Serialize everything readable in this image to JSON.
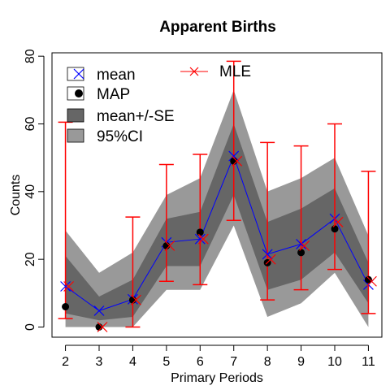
{
  "chart_data": {
    "type": "line",
    "title": "Apparent Births",
    "xlabel": "Primary Periods",
    "ylabel": "Counts",
    "x": [
      2,
      3,
      4,
      5,
      6,
      7,
      8,
      9,
      10,
      11
    ],
    "xlim": [
      1.6,
      11.4
    ],
    "ylim": [
      -3,
      81
    ],
    "y_ticks": [
      0,
      20,
      40,
      60,
      80
    ],
    "x_tick_labels": [
      "2",
      "3",
      "4",
      "5",
      "6",
      "7",
      "8",
      "9",
      "10",
      "11"
    ],
    "y_tick_labels": [
      "0",
      "20",
      "40",
      "60",
      "80"
    ],
    "series": [
      {
        "name": "mean",
        "values": [
          12,
          4.8,
          8.2,
          25,
          26,
          50.5,
          21.5,
          24.5,
          32,
          12.5
        ],
        "color": "#0000ff",
        "marker": "x"
      },
      {
        "name": "MAP",
        "values": [
          6,
          0,
          8,
          24,
          28,
          49,
          19,
          22,
          29,
          14
        ],
        "color": "#000000",
        "marker": "dot"
      },
      {
        "name": "MLE",
        "values": [
          12,
          0,
          8,
          24,
          26,
          49,
          20,
          24,
          31,
          13.5
        ],
        "color": "#ff0000",
        "marker": "x",
        "ci_lower": [
          2.5,
          0,
          0,
          13.5,
          12.5,
          31.5,
          8,
          11,
          17,
          4
        ],
        "ci_upper": [
          60.5,
          0,
          32.5,
          48,
          51,
          78.5,
          54.5,
          53.5,
          60,
          46
        ]
      }
    ],
    "bands": [
      {
        "name": "mean+/-SE",
        "lower": [
          4,
          2,
          3,
          18,
          18,
          39,
          11,
          14,
          22,
          7
        ],
        "upper": [
          21,
          9,
          14,
          32,
          34,
          60,
          31,
          35,
          41,
          19
        ],
        "color": "#666666"
      },
      {
        "name": "95%CI",
        "lower": [
          0,
          0,
          0,
          11,
          11,
          30,
          3,
          7,
          16,
          0
        ],
        "upper": [
          28.5,
          16,
          22,
          39,
          44,
          70,
          40,
          44,
          50,
          27
        ],
        "color": "#999999"
      }
    ],
    "legend": {
      "placement": "top-left",
      "entries": [
        "mean",
        "MAP",
        "mean+/-SE",
        "95%CI",
        "MLE"
      ]
    },
    "grid": false
  }
}
